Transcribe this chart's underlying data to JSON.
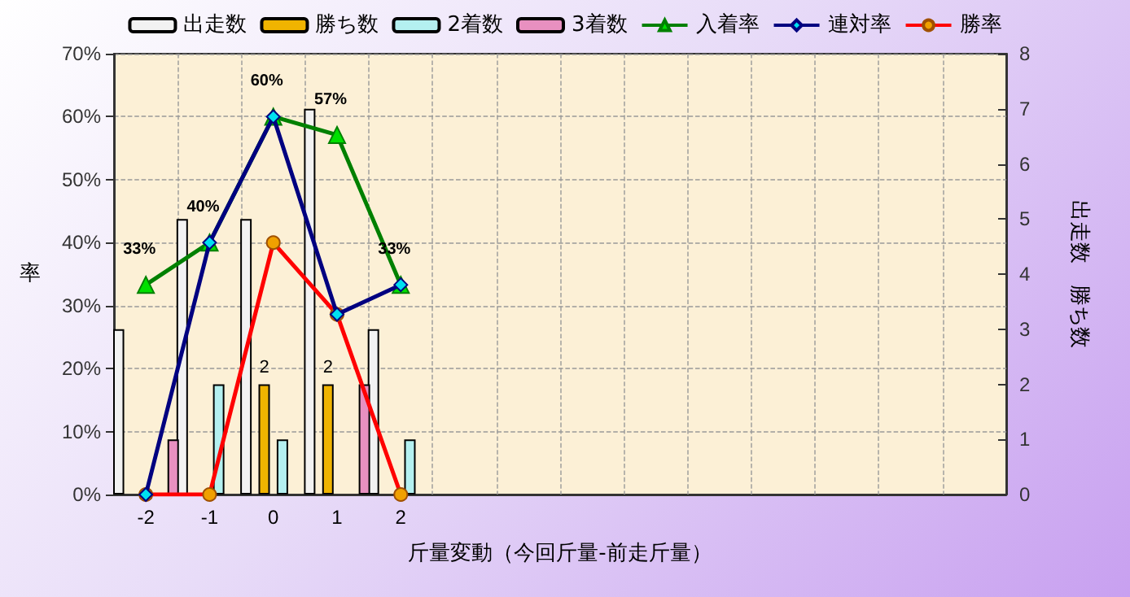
{
  "chart_data": {
    "type": "bar",
    "xlabel": "斤量変動（今回斤量-前走斤量）",
    "ylabel": "率",
    "y2label": "出走数　勝ち数",
    "categories": [
      "-2",
      "-1",
      "0",
      "1",
      "2",
      null,
      null,
      null,
      null,
      null,
      null,
      null,
      null,
      null
    ],
    "series": [
      {
        "name": "出走数",
        "axis": "y2",
        "color": "#f2f2f2",
        "values": [
          3,
          5,
          5,
          7,
          3,
          null,
          null,
          null,
          null,
          null,
          null,
          null,
          null,
          null
        ]
      },
      {
        "name": "勝ち数",
        "axis": "y2",
        "color": "#f0b400",
        "values": [
          0,
          0,
          2,
          2,
          0,
          null,
          null,
          null,
          null,
          null,
          null,
          null,
          null,
          null
        ],
        "value_labels": [
          null,
          null,
          "2",
          "2",
          null,
          null,
          null,
          null,
          null,
          null,
          null,
          null,
          null,
          null
        ]
      },
      {
        "name": "2着数",
        "axis": "y2",
        "color": "#b4f0f0",
        "values": [
          0,
          2,
          1,
          0,
          1,
          null,
          null,
          null,
          null,
          null,
          null,
          null,
          null,
          null
        ]
      },
      {
        "name": "3着数",
        "axis": "y2",
        "color": "#e890c0",
        "values": [
          1,
          0,
          0,
          2,
          0,
          null,
          null,
          null,
          null,
          null,
          null,
          null,
          null,
          null
        ]
      },
      {
        "name": "入着率",
        "type": "line",
        "color": "#008000",
        "marker": "triangle",
        "values": [
          33.3,
          40,
          60,
          57.1,
          33.3,
          null,
          null,
          null,
          null,
          null,
          null,
          null,
          null,
          null
        ],
        "value_labels": [
          "33%",
          "40%",
          "60%",
          "57%",
          "33%",
          null,
          null,
          null,
          null,
          null,
          null,
          null,
          null,
          null
        ]
      },
      {
        "name": "連対率",
        "type": "line",
        "color": "#000080",
        "marker": "diamond",
        "values": [
          0,
          40,
          60,
          28.6,
          33.3,
          null,
          null,
          null,
          null,
          null,
          null,
          null,
          null,
          null
        ]
      },
      {
        "name": "勝率",
        "type": "line",
        "color": "#ff0000",
        "marker": "circle",
        "values": [
          0,
          0,
          40,
          28.6,
          0,
          null,
          null,
          null,
          null,
          null,
          null,
          null,
          null,
          null
        ]
      }
    ],
    "ylim": [
      0,
      70
    ],
    "yticks": [
      {
        "value": 0,
        "label": "0%"
      },
      {
        "value": 10,
        "label": "10%"
      },
      {
        "value": 20,
        "label": "20%"
      },
      {
        "value": 30,
        "label": "30%"
      },
      {
        "value": 40,
        "label": "40%"
      },
      {
        "value": 50,
        "label": "50%"
      },
      {
        "value": 60,
        "label": "60%"
      },
      {
        "value": 70,
        "label": "70%"
      }
    ],
    "y2lim": [
      0,
      8
    ],
    "y2ticks": [
      0,
      1,
      2,
      3,
      4,
      5,
      6,
      7,
      8
    ],
    "grid": true,
    "legend": "top",
    "line_style": "solid"
  }
}
